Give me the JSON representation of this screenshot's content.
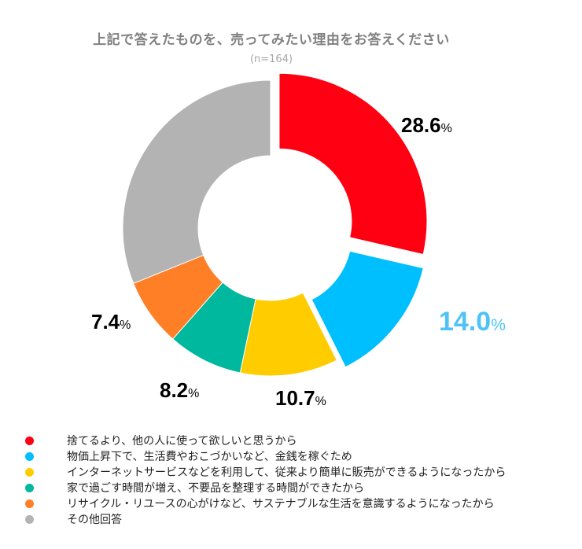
{
  "chart_data": {
    "type": "pie",
    "style": "donut",
    "title": "上記で答えたものを、売ってみたい理由をお答えください",
    "subtitle": "(n=164)",
    "percent_sign": "%",
    "slices": [
      {
        "label": "捨てるより、他の人に使って欲しいと思うから",
        "value": 28.6,
        "display": "28.6",
        "color": "#ff0013",
        "label_color": "#000000",
        "exploded": true
      },
      {
        "label": "物価上昇下で、生活費やおこづかいなど、金銭を稼ぐため",
        "value": 14.0,
        "display": "14.0",
        "color": "#00bfff",
        "label_color": "#4fc3f7",
        "exploded": true
      },
      {
        "label": "インターネットサービスなどを利用して、従来より簡単に販売ができるようになったから",
        "value": 10.7,
        "display": "10.7",
        "color": "#ffcc00",
        "label_color": "#000000",
        "exploded": false
      },
      {
        "label": "家で過ごす時間が増え、不要品を整理する時間ができたから",
        "value": 8.2,
        "display": "8.2",
        "color": "#00b89e",
        "label_color": "#000000",
        "exploded": false
      },
      {
        "label": "リサイクル・リユースの心がけなど、サステナブルな生活を意識するようになったから",
        "value": 7.4,
        "display": "7.4",
        "color": "#ff7f27",
        "label_color": "#000000",
        "exploded": false
      },
      {
        "label": "その他回答",
        "value": 31.1,
        "display": null,
        "color": "#b3b3b3",
        "label_color": "#000000",
        "exploded": false
      }
    ]
  }
}
